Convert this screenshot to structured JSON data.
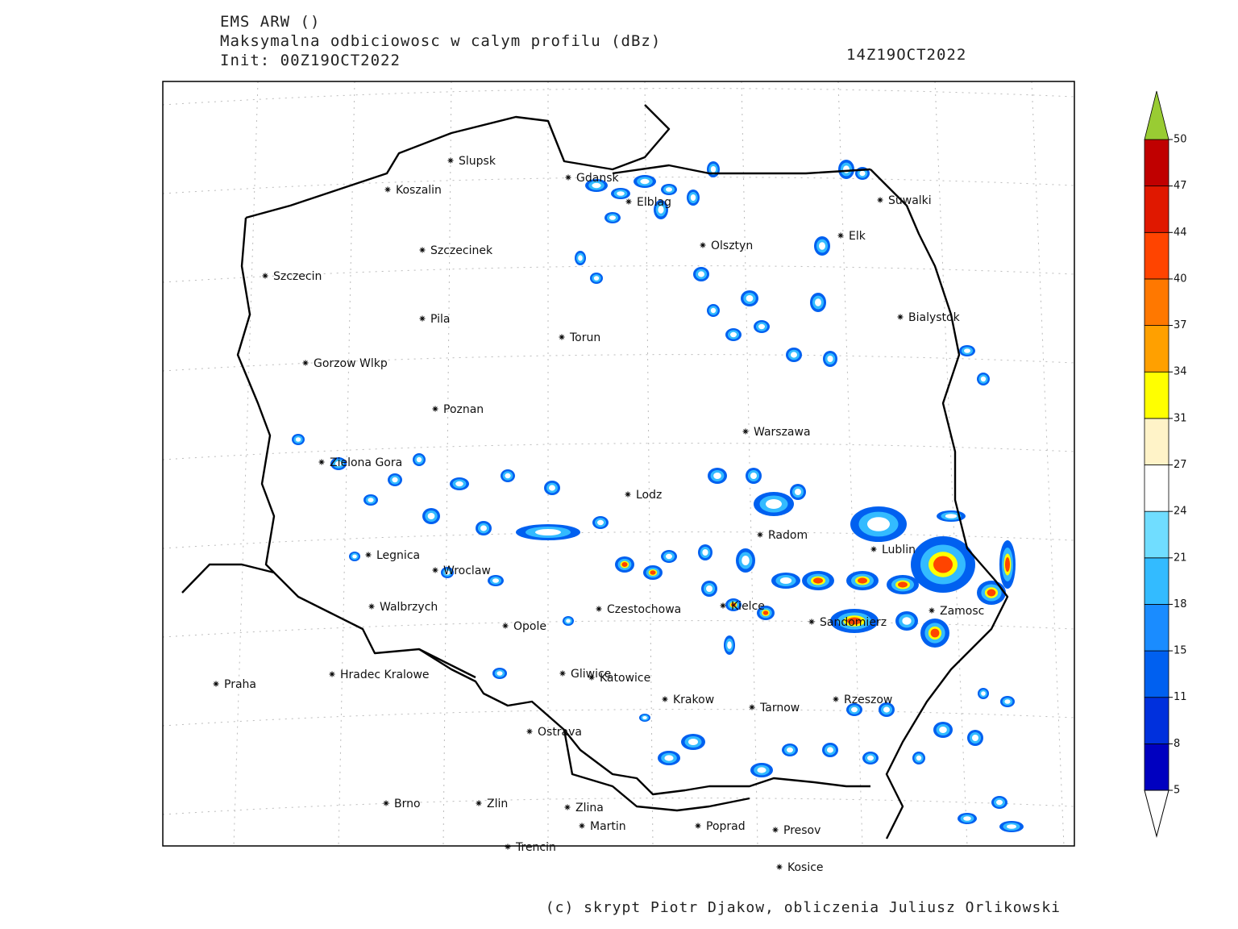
{
  "header": {
    "title": "EMS ARW ()",
    "subtitle": "Maksymalna odbiciowosc w calym profilu (dBz)",
    "init": "Init: 00Z19OCT2022",
    "valid": "14Z19OCT2022"
  },
  "credit": "(c) skrypt Piotr Djakow, obliczenia Juliusz Orlikowski",
  "colorbar": {
    "levels": [
      5,
      8,
      11,
      15,
      18,
      21,
      24,
      27,
      31,
      34,
      37,
      40,
      44,
      47,
      50
    ],
    "colors": [
      "#0000c0",
      "#0030dd",
      "#0060f0",
      "#1a8cff",
      "#33bbff",
      "#70ddff",
      "#ffffff",
      "#fff3c8",
      "#ffff00",
      "#ffa000",
      "#ff7800",
      "#ff4400",
      "#e01800",
      "#c00000"
    ],
    "over_color": "#99cc33",
    "under_color": "#ffffff"
  },
  "cities": [
    "Slupsk",
    "Koszalin",
    "Szczecinek",
    "Szczecin",
    "Pila",
    "Torun",
    "Gorzow Wlkp",
    "Poznan",
    "Zielona Gora",
    "Gdansk",
    "Elblag",
    "Olsztyn",
    "Elk",
    "Suwalki",
    "Bialystok",
    "Warszawa",
    "Lodz",
    "Radom",
    "Lublin",
    "Legnica",
    "Wroclaw",
    "Walbrzych",
    "Czestochowa",
    "Kielce",
    "Sandomierz",
    "Zamosc",
    "Opole",
    "Praha",
    "Hradec Kralowe",
    "Gliwice",
    "Katowice",
    "Krakow",
    "Tarnow",
    "Rzeszow",
    "Ostrava",
    "Brno",
    "Zlin",
    "Zlina",
    "Martin",
    "Poprad",
    "Presov",
    "Trencin",
    "Kosice"
  ]
}
